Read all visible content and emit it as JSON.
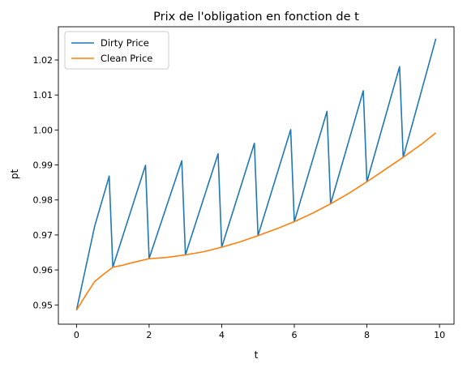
{
  "chart_data": {
    "type": "line",
    "title": "Prix de l'obligation en fonction de t",
    "xlabel": "t",
    "ylabel": "pt",
    "xlim": [
      -0.5,
      10.4
    ],
    "ylim": [
      0.9445,
      1.0295
    ],
    "xticks": [
      0,
      2,
      4,
      6,
      8,
      10
    ],
    "yticks": [
      0.95,
      0.96,
      0.97,
      0.98,
      0.99,
      1.0,
      1.01,
      1.02
    ],
    "xtick_labels": [
      "0",
      "2",
      "4",
      "6",
      "8",
      "10"
    ],
    "ytick_labels": [
      "0.95",
      "0.96",
      "0.97",
      "0.98",
      "0.99",
      "1.00",
      "1.01",
      "1.02"
    ],
    "grid": false,
    "legend_position": "top-left",
    "series": [
      {
        "name": "Dirty Price",
        "color": "#1f77b4",
        "x": [
          0,
          0.5,
          0.9,
          1.0,
          1.9,
          2.0,
          2.9,
          3.0,
          3.9,
          4.0,
          4.9,
          5.0,
          5.9,
          6.0,
          6.9,
          7.0,
          7.9,
          8.0,
          8.9,
          9.0,
          9.9
        ],
        "y": [
          0.9485,
          0.9725,
          0.9868,
          0.9608,
          0.9899,
          0.9633,
          0.9912,
          0.9643,
          0.9932,
          0.9665,
          0.9962,
          0.9698,
          1.0001,
          0.9738,
          1.0053,
          0.9789,
          1.0112,
          0.9852,
          1.0181,
          0.9922,
          1.0261
        ]
      },
      {
        "name": "Clean Price",
        "color": "#ff7f0e",
        "x": [
          0,
          0.25,
          0.5,
          0.75,
          1.0,
          1.25,
          1.5,
          2.0,
          2.5,
          3.0,
          3.5,
          4.0,
          4.5,
          5.0,
          5.5,
          6.0,
          6.5,
          7.0,
          7.5,
          8.0,
          8.5,
          9.0,
          9.5,
          9.9
        ],
        "y": [
          0.9485,
          0.9527,
          0.9567,
          0.9588,
          0.9608,
          0.9613,
          0.962,
          0.9632,
          0.9636,
          0.9643,
          0.9652,
          0.9665,
          0.968,
          0.9698,
          0.9717,
          0.9738,
          0.9762,
          0.9789,
          0.9819,
          0.9852,
          0.9887,
          0.9922,
          0.9959,
          0.9992
        ]
      }
    ]
  }
}
